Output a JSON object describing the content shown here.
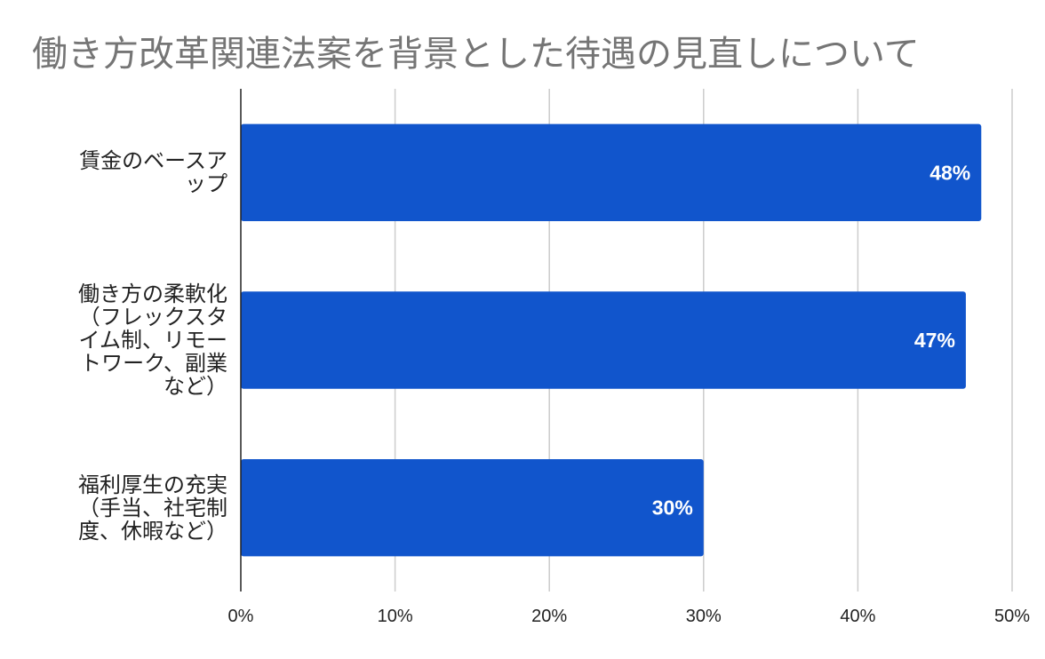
{
  "chart_data": {
    "type": "bar",
    "orientation": "horizontal",
    "title": "働き方改革関連法案を背景とした待遇の見直しについて",
    "categories": [
      [
        "賃金のベースア",
        "ップ"
      ],
      [
        "働き方の柔軟化",
        "（フレックスタ",
        "イム制、リモー",
        "トワーク、副業",
        "など）"
      ],
      [
        "福利厚生の充実",
        "（手当、社宅制",
        "度、休暇など）"
      ]
    ],
    "values": [
      48,
      47,
      30
    ],
    "data_labels": [
      "48%",
      "47%",
      "30%"
    ],
    "xlim": [
      0,
      50
    ],
    "xticks": [
      0,
      10,
      20,
      30,
      40,
      50
    ],
    "xtick_labels": [
      "0%",
      "10%",
      "20%",
      "30%",
      "40%",
      "50%"
    ],
    "grid": "vertical",
    "bar_color": "#1155cc",
    "data_label_color": "#ffffff",
    "grid_color": "#cccccc",
    "axis_color": "#222222",
    "title_color": "#757575"
  }
}
